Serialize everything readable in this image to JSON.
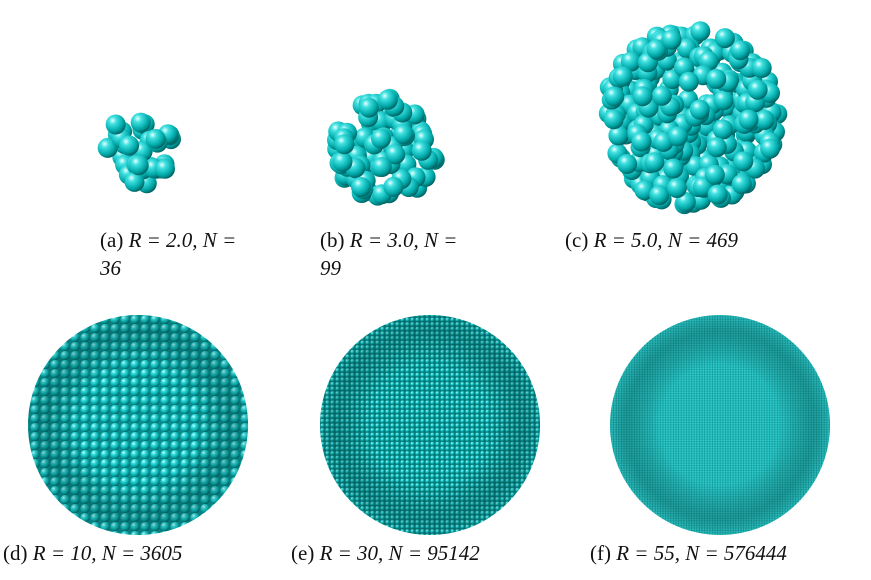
{
  "panels": [
    {
      "label": "(a)",
      "caption": "R = 2.0, N = 36"
    },
    {
      "label": "(b)",
      "caption": "R = 3.0, N = 99"
    },
    {
      "label": "(c)",
      "caption": "R = 5.0, N = 469"
    },
    {
      "label": "(d)",
      "caption": "R = 10, N = 3605"
    },
    {
      "label": "(e)",
      "caption": "R = 30, N = 95142"
    },
    {
      "label": "(f)",
      "caption": "R = 55, N = 576444"
    }
  ]
}
